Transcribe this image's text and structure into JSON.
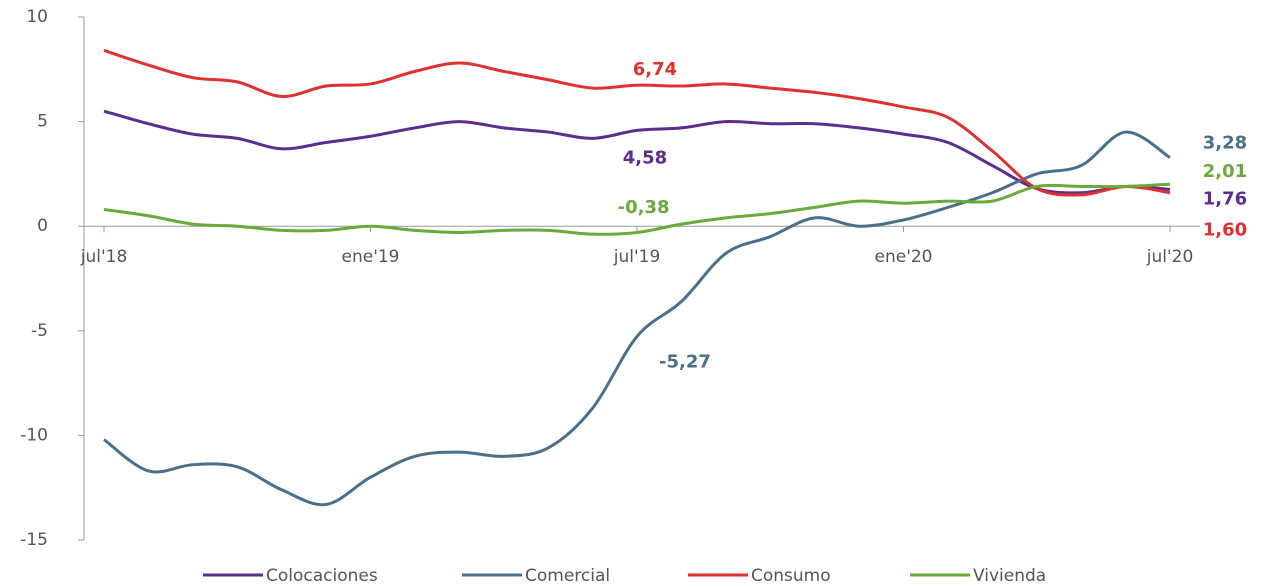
{
  "chart_data": {
    "type": "line",
    "categories": [
      "jul'18",
      null,
      null,
      null,
      null,
      null,
      "ene'19",
      null,
      null,
      null,
      null,
      null,
      "jul'19",
      null,
      null,
      null,
      null,
      null,
      "ene'20",
      null,
      null,
      null,
      null,
      null,
      "jul'20"
    ],
    "series": [
      {
        "name": "Colocaciones",
        "color": "#5b2d8e",
        "values": [
          5.5,
          4.9,
          4.4,
          4.2,
          3.7,
          4.0,
          4.3,
          4.7,
          5.0,
          4.7,
          4.5,
          4.2,
          4.58,
          4.7,
          5.0,
          4.9,
          4.9,
          4.7,
          4.4,
          4.0,
          2.9,
          1.8,
          1.6,
          1.9,
          1.76
        ],
        "value_labels": [
          null,
          null,
          null,
          null,
          null,
          null,
          null,
          null,
          null,
          null,
          null,
          null,
          "4,58",
          null,
          null,
          null,
          null,
          null,
          null,
          null,
          null,
          null,
          null,
          null,
          "1,76"
        ]
      },
      {
        "name": "Comercial",
        "color": "#4a6f8a",
        "values": [
          -10.2,
          -11.7,
          -11.4,
          -11.5,
          -12.6,
          -13.3,
          -12.0,
          -11.0,
          -10.8,
          -11.0,
          -10.6,
          -8.7,
          -5.27,
          -3.6,
          -1.3,
          -0.5,
          0.4,
          0.0,
          0.3,
          0.9,
          1.6,
          2.5,
          2.9,
          4.5,
          3.28
        ],
        "value_labels": [
          null,
          null,
          null,
          null,
          null,
          null,
          null,
          null,
          null,
          null,
          null,
          null,
          "-5,27",
          null,
          null,
          null,
          null,
          null,
          null,
          null,
          null,
          null,
          null,
          null,
          "3,28"
        ]
      },
      {
        "name": "Consumo",
        "color": "#e03030",
        "values": [
          8.4,
          7.7,
          7.1,
          6.9,
          6.2,
          6.7,
          6.8,
          7.4,
          7.8,
          7.4,
          7.0,
          6.6,
          6.74,
          6.7,
          6.8,
          6.6,
          6.4,
          6.1,
          5.7,
          5.2,
          3.6,
          1.8,
          1.5,
          1.9,
          1.6
        ],
        "value_labels": [
          null,
          null,
          null,
          null,
          null,
          null,
          null,
          null,
          null,
          null,
          null,
          null,
          "6,74",
          null,
          null,
          null,
          null,
          null,
          null,
          null,
          null,
          null,
          null,
          null,
          "1,60"
        ]
      },
      {
        "name": "Vivienda",
        "color": "#6aaa3a",
        "values": [
          0.8,
          0.5,
          0.1,
          0.0,
          -0.2,
          -0.2,
          0.0,
          -0.2,
          -0.3,
          -0.2,
          -0.2,
          -0.38,
          -0.3,
          0.1,
          0.4,
          0.6,
          0.9,
          1.2,
          1.1,
          1.2,
          1.2,
          1.9,
          1.9,
          1.9,
          2.01
        ],
        "value_labels": [
          null,
          null,
          null,
          null,
          null,
          null,
          null,
          null,
          null,
          null,
          null,
          "-0,38",
          null,
          null,
          null,
          null,
          null,
          null,
          null,
          null,
          null,
          null,
          null,
          null,
          "2,01"
        ]
      }
    ],
    "ylim": [
      -15,
      10
    ],
    "yticks": [
      -15,
      -10,
      -5,
      0,
      5,
      10
    ],
    "legend": "bottom"
  }
}
